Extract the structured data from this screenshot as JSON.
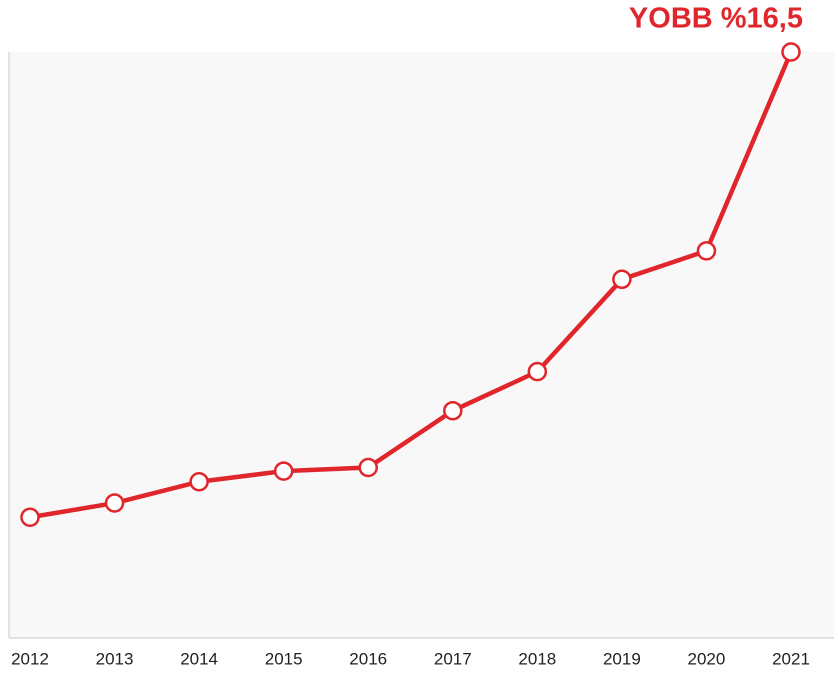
{
  "chart_data": {
    "type": "line",
    "categories": [
      "2012",
      "2013",
      "2014",
      "2015",
      "2016",
      "2017",
      "2018",
      "2019",
      "2020",
      "2021"
    ],
    "series": [
      {
        "color": "#e0262b",
        "values": [
          3.4,
          3.8,
          4.4,
          4.7,
          4.8,
          6.4,
          7.5,
          10.1,
          10.9,
          16.5
        ],
        "value_labels": [
          null,
          null,
          null,
          null,
          null,
          null,
          null,
          null,
          null,
          "YOBB %16,5"
        ]
      }
    ],
    "ylim": [
      0,
      16.5
    ]
  }
}
